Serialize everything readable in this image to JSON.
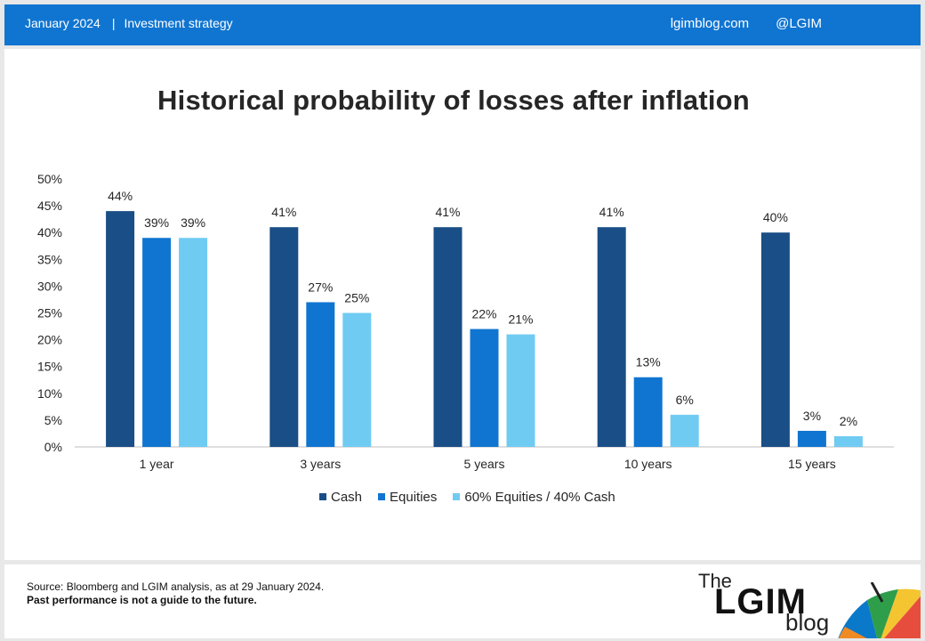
{
  "header": {
    "date": "January 2024",
    "separator": "|",
    "section": "Investment strategy",
    "site": "lgimblog.com",
    "handle": "@LGIM"
  },
  "chart_data": {
    "type": "bar",
    "title": "Historical probability of losses after inflation",
    "xlabel": "",
    "ylabel": "",
    "ylim": [
      0,
      50
    ],
    "yticks": [
      "0%",
      "5%",
      "10%",
      "15%",
      "20%",
      "25%",
      "30%",
      "35%",
      "40%",
      "45%",
      "50%"
    ],
    "categories": [
      "1 year",
      "3 years",
      "5 years",
      "10 years",
      "15 years"
    ],
    "series": [
      {
        "name": "Cash",
        "color": "#1a4e86",
        "values": [
          44,
          41,
          41,
          41,
          40
        ],
        "labels": [
          "44%",
          "41%",
          "41%",
          "41%",
          "40%"
        ]
      },
      {
        "name": "Equities",
        "color": "#1075d1",
        "values": [
          39,
          27,
          22,
          13,
          3
        ],
        "labels": [
          "39%",
          "27%",
          "22%",
          "13%",
          "3%"
        ]
      },
      {
        "name": "60% Equities / 40% Cash",
        "color": "#70cbf2",
        "values": [
          39,
          25,
          21,
          6,
          2
        ],
        "labels": [
          "39%",
          "25%",
          "21%",
          "6%",
          "2%"
        ]
      }
    ],
    "grid": false,
    "legend_position": "bottom"
  },
  "footer": {
    "source": "Source: Bloomberg and LGIM analysis, as at 29 January 2024.",
    "disclaimer": "Past performance is not a guide to the future."
  },
  "logo": {
    "line1": "The",
    "line2": "LGIM",
    "line3": "blog"
  }
}
